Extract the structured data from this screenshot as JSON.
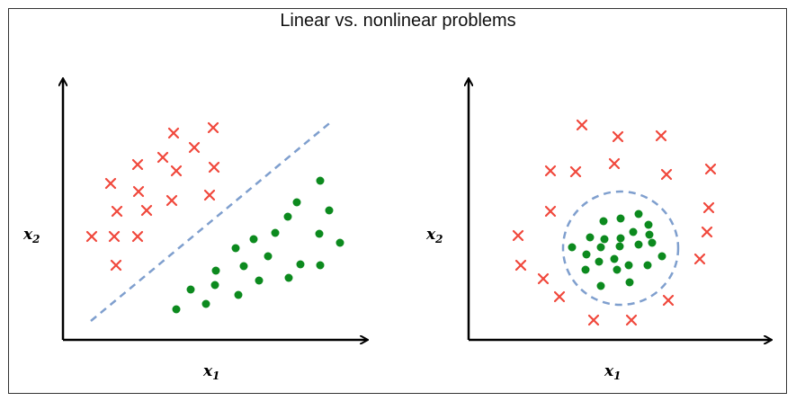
{
  "title": "Linear vs. nonlinear problems",
  "colors": {
    "cross": "#f0483c",
    "dot": "#0c8a1e",
    "boundary": "#7f9fce",
    "axis": "#000000"
  },
  "panels": [
    {
      "name": "linear",
      "xlabel_base": "x",
      "xlabel_sub": "1",
      "ylabel_base": "x",
      "ylabel_sub": "2"
    },
    {
      "name": "nonlinear",
      "xlabel_base": "x",
      "xlabel_sub": "1",
      "ylabel_base": "x",
      "ylabel_sub": "2"
    }
  ],
  "chart_data": []
}
